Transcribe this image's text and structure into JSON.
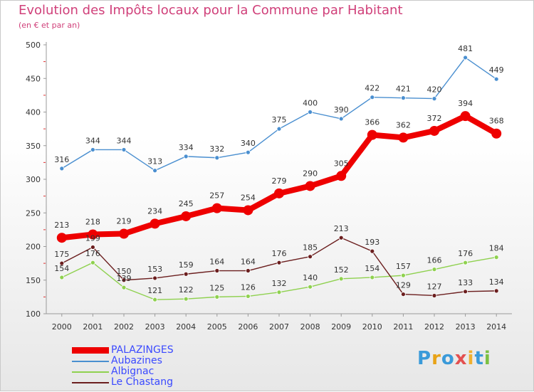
{
  "page": {
    "title": "Evolution des Impôts locaux pour la Commune par Habitant",
    "subtitle": "(en € et par an)",
    "brand": [
      "P",
      "r",
      "o",
      "x",
      "i",
      "t",
      "i"
    ],
    "brand_colors": [
      "#3a9ad9",
      "#e8a317",
      "#3a9ad9",
      "#e35050",
      "#f0b030",
      "#3a9ad9",
      "#7bc043"
    ]
  },
  "chart_data": {
    "type": "line",
    "x": [
      2000,
      2001,
      2002,
      2003,
      2004,
      2005,
      2006,
      2007,
      2008,
      2009,
      2010,
      2011,
      2012,
      2013,
      2014
    ],
    "ylim": [
      100,
      500
    ],
    "yticks": [
      100,
      150,
      200,
      250,
      300,
      350,
      400,
      450,
      500
    ],
    "grid": false,
    "legend_position": "bottom-left",
    "series": [
      {
        "name": "PALAZINGES",
        "color": "#ee0000",
        "values": [
          213,
          218,
          219,
          234,
          245,
          257,
          254,
          279,
          290,
          305,
          366,
          362,
          372,
          394,
          368
        ]
      },
      {
        "name": "Aubazines",
        "color": "#4a8fd0",
        "values": [
          316,
          344,
          344,
          313,
          334,
          332,
          340,
          375,
          400,
          390,
          422,
          421,
          420,
          481,
          449
        ]
      },
      {
        "name": "Albignac",
        "color": "#8fd14f",
        "values": [
          154,
          176,
          139,
          121,
          122,
          125,
          126,
          132,
          140,
          152,
          154,
          157,
          166,
          176,
          184
        ]
      },
      {
        "name": "Le Chastang",
        "color": "#6b1e1e",
        "values": [
          175,
          199,
          150,
          153,
          159,
          164,
          164,
          176,
          185,
          213,
          193,
          129,
          127,
          133,
          134
        ]
      }
    ]
  }
}
